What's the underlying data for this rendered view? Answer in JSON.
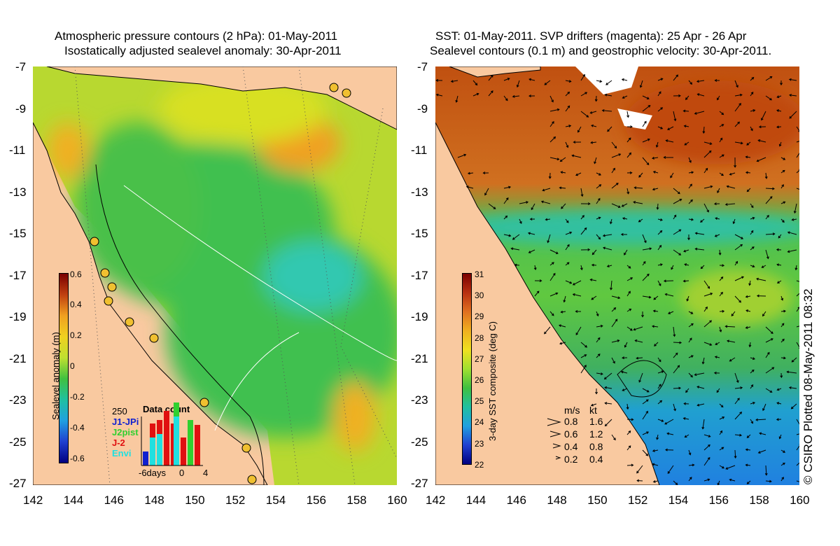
{
  "left_panel": {
    "title_line1": "Atmospheric pressure contours (2 hPa): 01-May-2011",
    "title_line2": "Isostatically adjusted sealevel anomaly: 30-Apr-2011",
    "colorbar": {
      "label": "Sealevel anomaly (m)",
      "ticks": [
        "0.6",
        "0.4",
        "0.2",
        "0",
        "-0.2",
        "-0.4",
        "-0.6"
      ],
      "values": [
        0.6,
        0.4,
        0.2,
        0,
        -0.2,
        -0.4,
        -0.6
      ]
    },
    "data_count": {
      "title": "Data count",
      "max_label": "250",
      "x_labels": [
        "-6days",
        "0",
        "4"
      ],
      "legend": [
        {
          "label": "J1-JPi",
          "color": "#1020d0"
        },
        {
          "label": "J2pist",
          "color": "#30d030"
        },
        {
          "label": "J-2",
          "color": "#e01010"
        },
        {
          "label": "Envi",
          "color": "#20e0e0"
        }
      ]
    }
  },
  "right_panel": {
    "title_line1": "SST: 01-May-2011. SVP drifters (magenta): 25 Apr - 26 Apr",
    "title_line2": "Sealevel contours (0.1 m) and geostrophic velocity: 30-Apr-2011.",
    "colorbar": {
      "label": "3-day SST composite (deg C)",
      "ticks": [
        "31",
        "30",
        "29",
        "28",
        "27",
        "26",
        "25",
        "24",
        "23",
        "22"
      ]
    },
    "velocity_legend": {
      "header_ms": "m/s",
      "header_kt": "kt",
      "rows": [
        {
          "ms": "0.8",
          "kt": "1.6"
        },
        {
          "ms": "0.6",
          "kt": "1.2"
        },
        {
          "ms": "0.4",
          "kt": "0.8"
        },
        {
          "ms": "0.2",
          "kt": "0.4"
        }
      ]
    },
    "copyright": "© CSIRO Plotted 08-May-2011 08:32"
  },
  "axes": {
    "lat_ticks": [
      "-7",
      "-9",
      "-11",
      "-13",
      "-15",
      "-17",
      "-19",
      "-21",
      "-23",
      "-25",
      "-27"
    ],
    "lon_ticks": [
      "142",
      "144",
      "146",
      "148",
      "150",
      "152",
      "154",
      "156",
      "158",
      "160"
    ]
  },
  "colors": {
    "land": "#f9c9a0",
    "ocean_green": "#30c040",
    "ocean_yellow": "#d8e020",
    "ocean_orange": "#f0a020",
    "sst_warm": "#c05010",
    "sst_cool": "#20a0e0"
  }
}
